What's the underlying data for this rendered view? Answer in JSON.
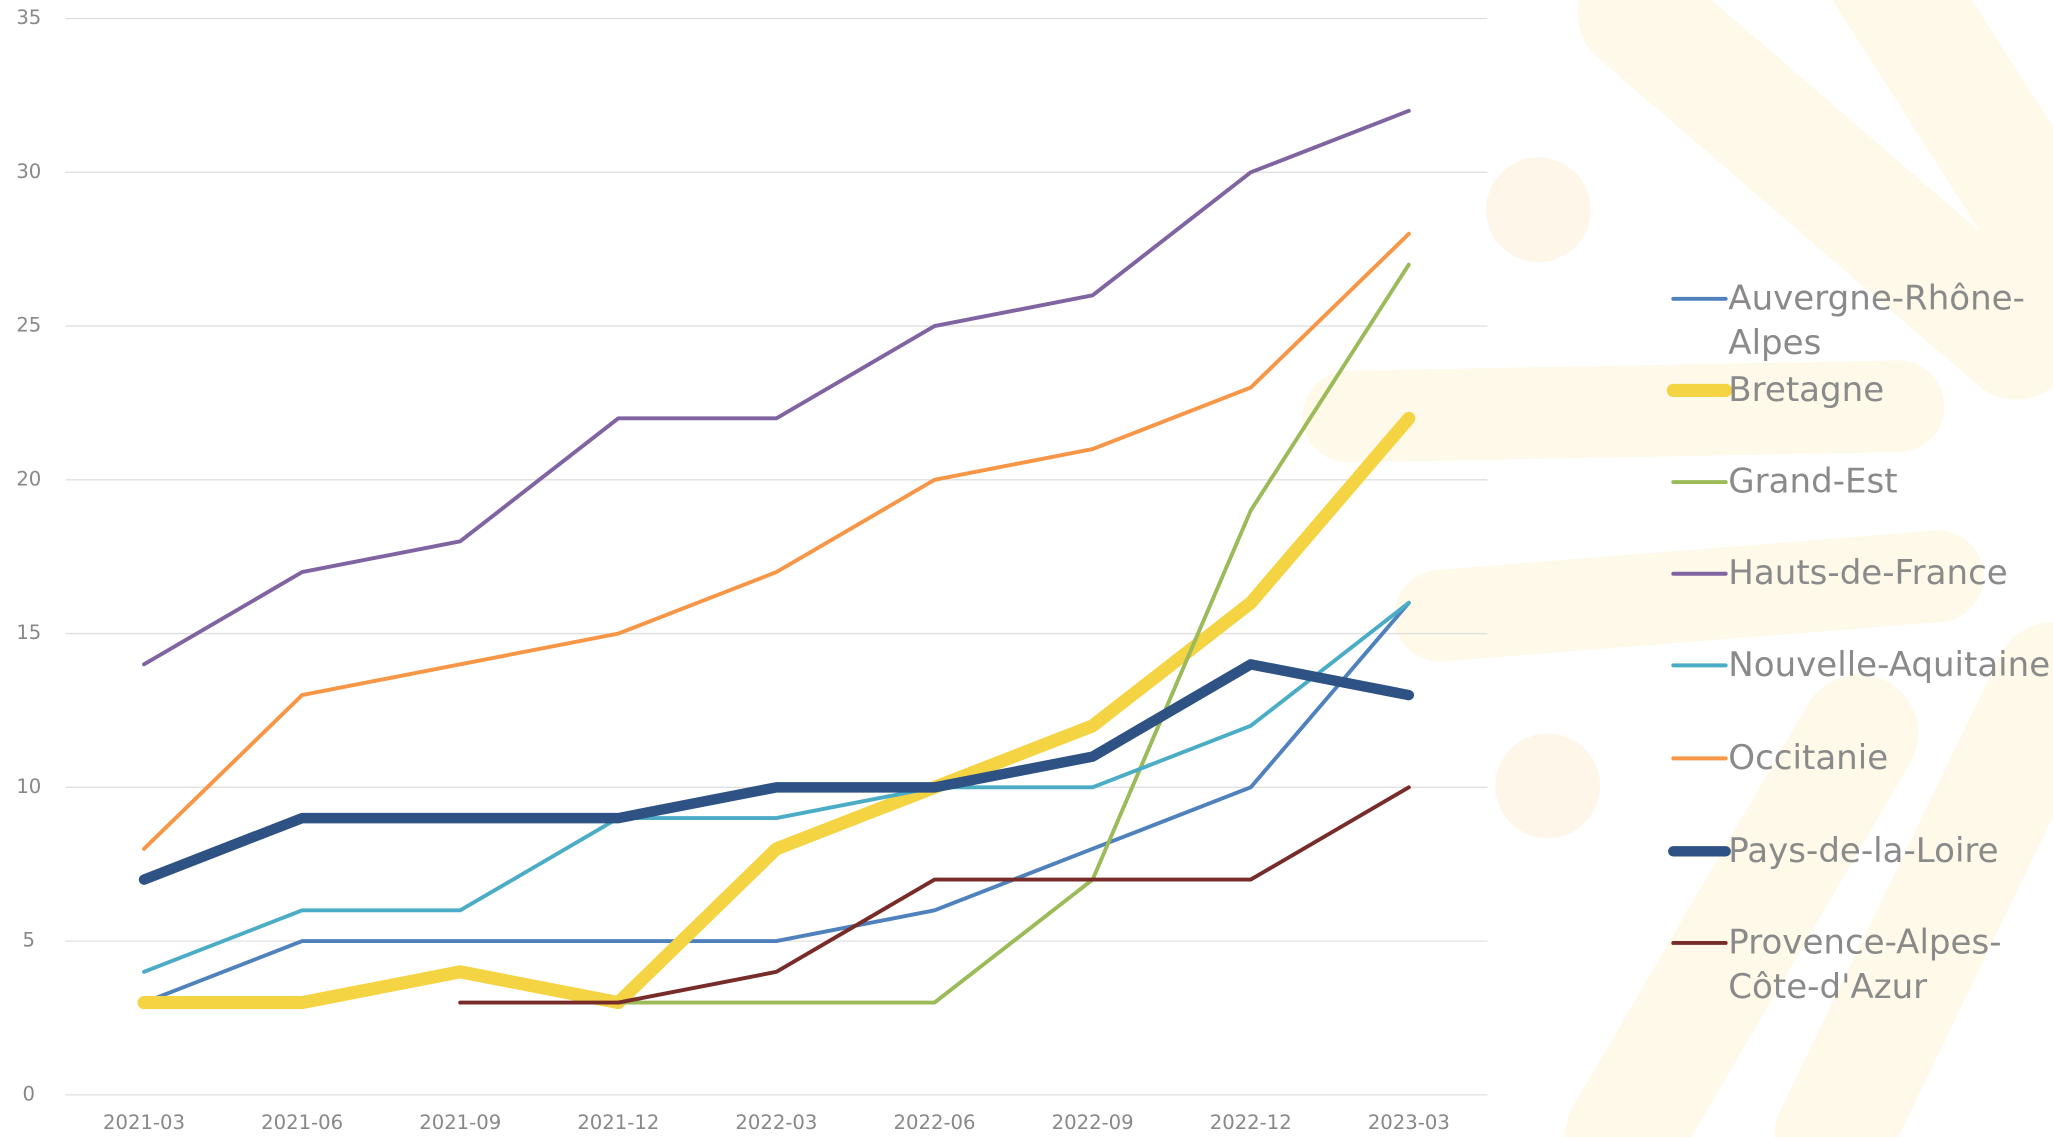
{
  "chart_data": {
    "type": "line",
    "categories": [
      "2021-03",
      "2021-06",
      "2021-09",
      "2021-12",
      "2022-03",
      "2022-06",
      "2022-09",
      "2022-12",
      "2023-03"
    ],
    "ylim": [
      0,
      35
    ],
    "yticks": [
      0,
      5,
      10,
      15,
      20,
      25,
      30,
      35
    ],
    "grid": true,
    "legend": "right",
    "series": [
      {
        "name": "Auvergne-Rhône-Alpes",
        "color": "#4f81bd",
        "line_width": 3,
        "values": [
          3,
          5,
          5,
          5,
          5,
          6,
          8,
          10,
          16
        ]
      },
      {
        "name": "Bretagne",
        "color": "#f5d444",
        "line_width": 10,
        "values": [
          3,
          3,
          4,
          3,
          8,
          10,
          12,
          16,
          22
        ]
      },
      {
        "name": "Grand-Est",
        "color": "#9bbb59",
        "line_width": 3,
        "values": [
          null,
          null,
          null,
          3,
          3,
          3,
          7,
          19,
          27
        ]
      },
      {
        "name": "Hauts-de-France",
        "color": "#8064a2",
        "line_width": 3,
        "values": [
          14,
          17,
          18,
          22,
          22,
          25,
          26,
          30,
          32
        ]
      },
      {
        "name": "Nouvelle-Aquitaine",
        "color": "#4bacc6",
        "line_width": 3,
        "values": [
          4,
          6,
          6,
          9,
          9,
          10,
          10,
          12,
          16
        ]
      },
      {
        "name": "Occitanie",
        "color": "#f79646",
        "line_width": 3,
        "values": [
          8,
          13,
          14,
          15,
          17,
          20,
          21,
          23,
          28
        ]
      },
      {
        "name": "Pays-de-la-Loire",
        "color": "#2e5283",
        "line_width": 8,
        "values": [
          7,
          9,
          9,
          9,
          10,
          10,
          11,
          14,
          13
        ]
      },
      {
        "name": "Provence-Alpes-Côte-d'Azur",
        "color": "#772c2a",
        "line_width": 3,
        "values": [
          null,
          null,
          3,
          3,
          4,
          7,
          7,
          7,
          10
        ]
      }
    ]
  }
}
